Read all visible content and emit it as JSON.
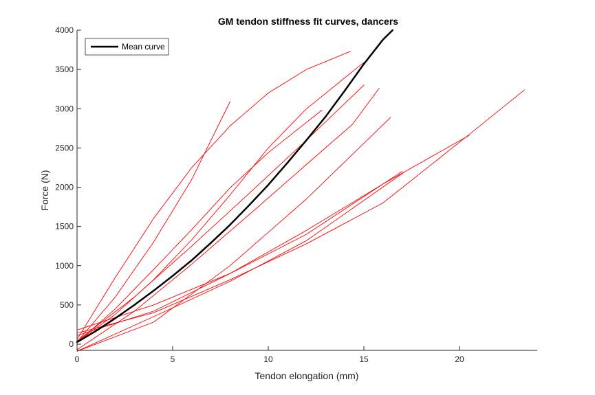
{
  "chart_data": {
    "type": "line",
    "title": "GM tendon stiffness fit curves, dancers",
    "xlabel": "Tendon elongation (mm)",
    "ylabel": "Force (N)",
    "xlim": [
      0,
      24
    ],
    "ylim": [
      -80,
      4000
    ],
    "xticks": [
      0,
      5,
      10,
      15,
      20
    ],
    "yticks": [
      0,
      500,
      1000,
      1500,
      2000,
      2500,
      3000,
      3500,
      4000
    ],
    "grid": false,
    "legend": {
      "placement": "top-left",
      "entries": [
        "Mean curve"
      ]
    },
    "colors": {
      "individual": "#ff0000",
      "mean": "#000000"
    },
    "series": [
      {
        "color": "#ff0000",
        "x": [
          0,
          2,
          4,
          6,
          8,
          10,
          12,
          14.3
        ],
        "y": [
          60,
          850,
          1600,
          2250,
          2780,
          3200,
          3500,
          3730
        ]
      },
      {
        "color": "#ff0000",
        "x": [
          0,
          2,
          4,
          6,
          8
        ],
        "y": [
          30,
          600,
          1300,
          2100,
          3090
        ]
      },
      {
        "color": "#ff0000",
        "x": [
          0,
          2,
          4,
          6,
          8,
          10,
          12,
          15
        ],
        "y": [
          30,
          380,
          820,
          1330,
          1900,
          2500,
          3000,
          3590
        ]
      },
      {
        "color": "#ff0000",
        "x": [
          0,
          2,
          4,
          6,
          8,
          10,
          12.8
        ],
        "y": [
          20,
          450,
          950,
          1460,
          1990,
          2440,
          2980
        ]
      },
      {
        "color": "#ff0000",
        "x": [
          0,
          3,
          6,
          9,
          12,
          15
        ],
        "y": [
          40,
          600,
          1250,
          1920,
          2600,
          3300
        ]
      },
      {
        "color": "#ff0000",
        "x": [
          0,
          3,
          6,
          9,
          12,
          14.4,
          15.8
        ],
        "y": [
          -70,
          420,
          1020,
          1650,
          2290,
          2800,
          3260
        ]
      },
      {
        "color": "#ff0000",
        "x": [
          0,
          4,
          8,
          12,
          16.4
        ],
        "y": [
          -90,
          280,
          1000,
          1850,
          2890
        ]
      },
      {
        "color": "#ff0000",
        "x": [
          0,
          4,
          8,
          12,
          16,
          20.5
        ],
        "y": [
          110,
          420,
          900,
          1450,
          2040,
          2660
        ]
      },
      {
        "color": "#ff0000",
        "x": [
          0,
          4,
          8,
          12,
          17
        ],
        "y": [
          180,
          500,
          900,
          1400,
          2200
        ]
      },
      {
        "color": "#ff0000",
        "x": [
          0,
          4,
          8,
          12,
          16,
          20.4,
          23.4
        ],
        "y": [
          140,
          400,
          820,
          1280,
          1800,
          2650,
          3240
        ]
      },
      {
        "color": "#ff0000",
        "x": [
          0,
          4,
          8,
          12,
          17.1
        ],
        "y": [
          -90,
          350,
          800,
          1320,
          2190
        ]
      },
      {
        "name": "Mean curve",
        "color": "#000000",
        "x": [
          0,
          1,
          2,
          3,
          4,
          5,
          6,
          7,
          8,
          9,
          10,
          11,
          12,
          13,
          14,
          15,
          16,
          16.5
        ],
        "y": [
          25,
          170,
          330,
          500,
          680,
          870,
          1070,
          1290,
          1520,
          1770,
          2030,
          2310,
          2600,
          2900,
          3230,
          3570,
          3880,
          4000
        ]
      }
    ]
  }
}
